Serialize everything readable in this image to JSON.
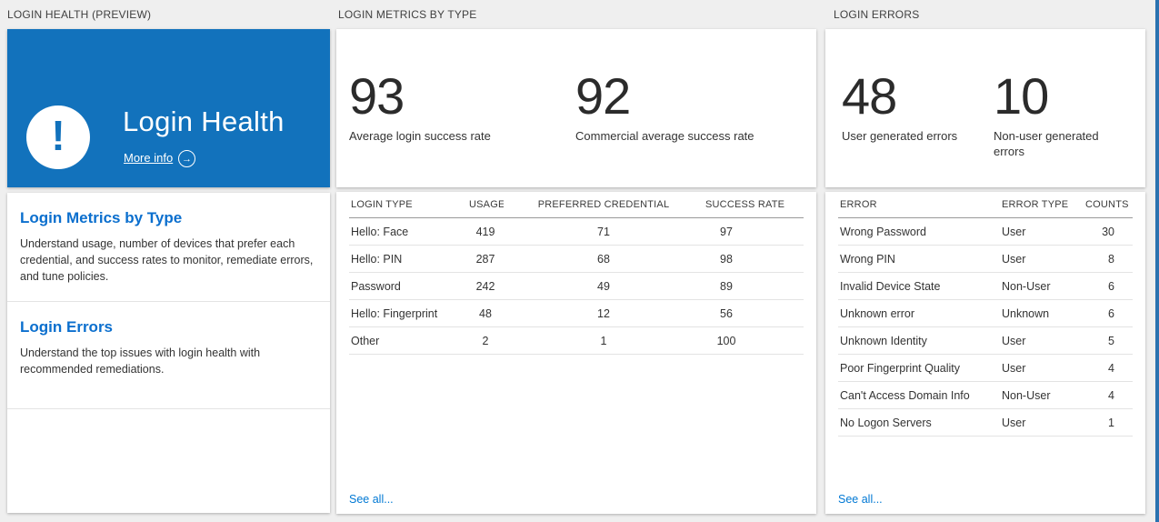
{
  "page": {
    "accent_blue": "#1272bc",
    "link_blue": "#0078d4",
    "background": "#efefef"
  },
  "health": {
    "header": "LOGIN HEALTH (PREVIEW)",
    "tile": {
      "title": "Login Health",
      "more_info_label": "More info",
      "arrow_glyph": "→",
      "icon": "exclamation-icon",
      "icon_glyph": "!"
    },
    "sections": [
      {
        "title": "Login Metrics by Type",
        "description": "Understand usage, number of devices that prefer each credential, and success rates to monitor, remediate errors, and tune policies."
      },
      {
        "title": "Login Errors",
        "description": "Understand the top issues with login health with recommended remediations."
      }
    ]
  },
  "metrics": {
    "header": "LOGIN METRICS BY TYPE",
    "stats": [
      {
        "value": "93",
        "label": "Average login success rate"
      },
      {
        "value": "92",
        "label": "Commercial average success rate"
      }
    ],
    "table": {
      "columns": [
        "LOGIN TYPE",
        "USAGE",
        "PREFERRED CREDENTIAL",
        "SUCCESS RATE"
      ],
      "rows": [
        [
          "Hello: Face",
          "419",
          "71",
          "97"
        ],
        [
          "Hello: PIN",
          "287",
          "68",
          "98"
        ],
        [
          "Password",
          "242",
          "49",
          "89"
        ],
        [
          "Hello: Fingerprint",
          "48",
          "12",
          "56"
        ],
        [
          "Other",
          "2",
          "1",
          "100"
        ]
      ]
    },
    "see_all": "See all..."
  },
  "errors": {
    "header": "LOGIN ERRORS",
    "stats": [
      {
        "value": "48",
        "label": "User generated errors"
      },
      {
        "value": "10",
        "label": "Non-user generated errors"
      }
    ],
    "table": {
      "columns": [
        "ERROR",
        "ERROR TYPE",
        "COUNTS"
      ],
      "rows": [
        [
          "Wrong Password",
          "User",
          "30"
        ],
        [
          "Wrong PIN",
          "User",
          "8"
        ],
        [
          "Invalid Device State",
          "Non-User",
          "6"
        ],
        [
          "Unknown error",
          "Unknown",
          "6"
        ],
        [
          "Unknown Identity",
          "User",
          "5"
        ],
        [
          "Poor Fingerprint Quality",
          "User",
          "4"
        ],
        [
          "Can't Access Domain Info",
          "Non-User",
          "4"
        ],
        [
          "No Logon Servers",
          "User",
          "1"
        ]
      ]
    },
    "see_all": "See all..."
  }
}
